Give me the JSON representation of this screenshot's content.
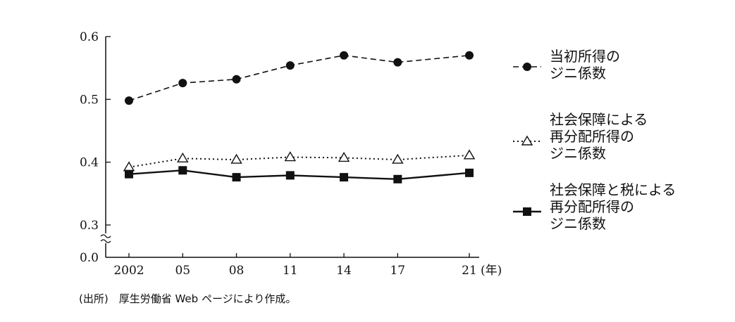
{
  "chart_data": {
    "type": "line",
    "x": [
      "2002",
      "05",
      "08",
      "11",
      "14",
      "17",
      "21"
    ],
    "x_years": [
      2002,
      2005,
      2008,
      2011,
      2014,
      2017,
      2021
    ],
    "x_unit": "(年)",
    "yticks": [
      "0.6",
      "0.5",
      "0.4",
      "0.3",
      "0.0"
    ],
    "ylim": [
      0.3,
      0.6
    ],
    "axis_break": true,
    "grid": false,
    "legend_position": "right",
    "series": [
      {
        "name": "当初所得のジニ係数",
        "name_lines": [
          "当初所得の",
          "ジニ係数"
        ],
        "marker": "filled-circle",
        "line": "dashed",
        "color": "#111111",
        "values": [
          0.498,
          0.526,
          0.532,
          0.554,
          0.57,
          0.559,
          0.57
        ]
      },
      {
        "name": "社会保障による再分配所得のジニ係数",
        "name_lines": [
          "社会保障による",
          "再分配所得の",
          "ジニ係数"
        ],
        "marker": "open-triangle",
        "line": "dotted",
        "color": "#111111",
        "values": [
          0.392,
          0.406,
          0.404,
          0.408,
          0.407,
          0.404,
          0.411
        ]
      },
      {
        "name": "社会保障と税による再分配所得のジニ係数",
        "name_lines": [
          "社会保障と税による",
          "再分配所得の",
          "ジニ係数"
        ],
        "marker": "filled-square",
        "line": "solid",
        "color": "#111111",
        "values": [
          0.381,
          0.387,
          0.376,
          0.379,
          0.376,
          0.373,
          0.383
        ]
      }
    ]
  },
  "source": "(出所)　厚生労働省 Web ページにより作成。"
}
